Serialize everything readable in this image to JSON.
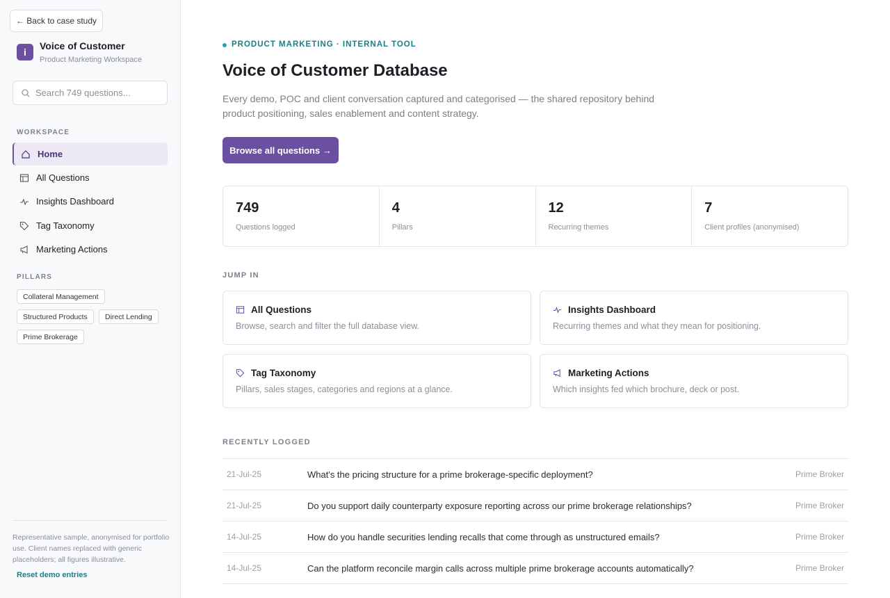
{
  "sidebar": {
    "back": "← Back to case study",
    "logo": "i",
    "app_title": "Voice of Customer",
    "app_subtitle": "Product Marketing Workspace",
    "search_placeholder": "Search 749 questions...",
    "workspace_label": "WORKSPACE",
    "nav": [
      "Home",
      "All Questions",
      "Insights Dashboard",
      "Tag Taxonomy",
      "Marketing Actions"
    ],
    "pillars_label": "PILLARS",
    "pillars": [
      "Collateral Management",
      "Structured Products",
      "Direct Lending",
      "Prime Brokerage"
    ],
    "footer_note": "Representative sample, anonymised for portfolio use. Client names replaced with generic placeholders; all figures illustrative.",
    "reset": "Reset demo entries"
  },
  "header": {
    "eyebrow": "PRODUCT MARKETING · INTERNAL TOOL",
    "title": "Voice of Customer Database",
    "description": "Every demo, POC and client conversation captured and categorised — the shared repository behind product positioning, sales enablement and content strategy.",
    "button": "Browse all questions →"
  },
  "stats": [
    {
      "value": "749",
      "label": "Questions logged"
    },
    {
      "value": "4",
      "label": "Pillars"
    },
    {
      "value": "12",
      "label": "Recurring themes"
    },
    {
      "value": "7",
      "label": "Client profiles (anonymised)"
    }
  ],
  "jump_in": {
    "label": "JUMP IN",
    "cards": [
      {
        "title": "All Questions",
        "description": "Browse, search and filter the full database view."
      },
      {
        "title": "Insights Dashboard",
        "description": "Recurring themes and what they mean for positioning."
      },
      {
        "title": "Tag Taxonomy",
        "description": "Pillars, sales stages, categories and regions at a glance."
      },
      {
        "title": "Marketing Actions",
        "description": "Which insights fed which brochure, deck or post."
      }
    ]
  },
  "recent": {
    "label": "RECENTLY LOGGED",
    "rows": [
      [
        "21-Jul-25",
        "What's the pricing structure for a prime brokerage-specific deployment?",
        "Prime Broker"
      ],
      [
        "21-Jul-25",
        "Do you support daily counterparty exposure reporting across our prime brokerage relationships?",
        "Prime Broker"
      ],
      [
        "14-Jul-25",
        "How do you handle securities lending recalls that come through as unstructured emails?",
        "Prime Broker"
      ],
      [
        "14-Jul-25",
        "Can the platform reconcile margin calls across multiple prime brokerage accounts automatically?",
        "Prime Broker"
      ]
    ]
  }
}
